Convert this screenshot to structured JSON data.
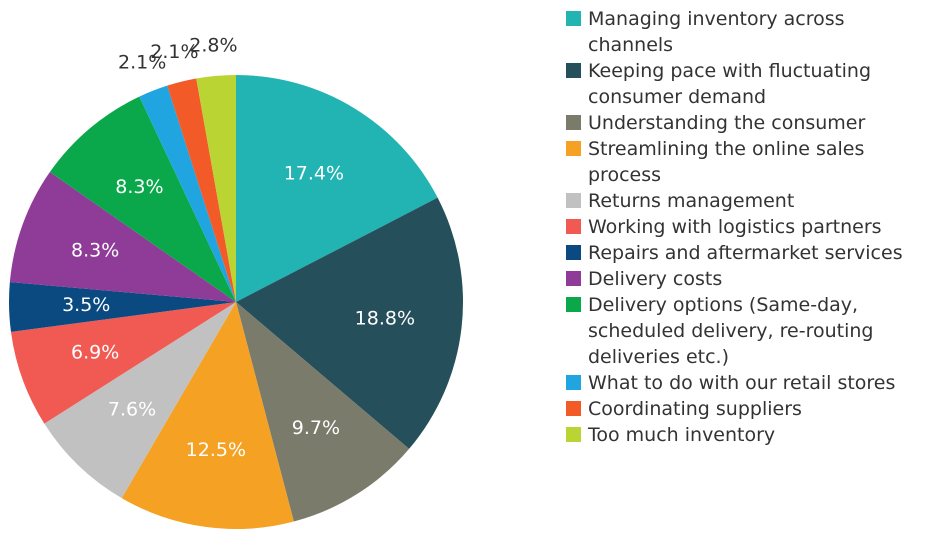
{
  "chart_data": {
    "type": "pie",
    "categories": [
      "Managing inventory across channels",
      "Keeping pace with fluctuating consumer demand",
      "Understanding the consumer",
      "Streamlining the online sales process",
      "Returns management",
      "Working with logistics partners",
      "Repairs and aftermarket services",
      "Delivery costs",
      "Delivery options (Same-day, scheduled delivery, re-routing deliveries etc.)",
      "What to do with our retail stores",
      "Coordinating suppliers",
      "Too much inventory"
    ],
    "values": [
      17.4,
      18.8,
      9.7,
      12.5,
      7.6,
      6.9,
      3.5,
      8.3,
      8.3,
      2.1,
      2.1,
      2.8
    ],
    "value_labels": [
      "17.4%",
      "18.8%",
      "9.7%",
      "12.5%",
      "7.6%",
      "6.9%",
      "3.5%",
      "8.3%",
      "8.3%",
      "2.1%",
      "2.1%",
      "2.8%"
    ],
    "colors": [
      "#22b3b3",
      "#264f5c",
      "#7a7b6b",
      "#f4a124",
      "#c1c1c1",
      "#f15a52",
      "#0b4a80",
      "#8f3b98",
      "#0aa84b",
      "#20a5e0",
      "#f25a28",
      "#b9d433"
    ]
  }
}
